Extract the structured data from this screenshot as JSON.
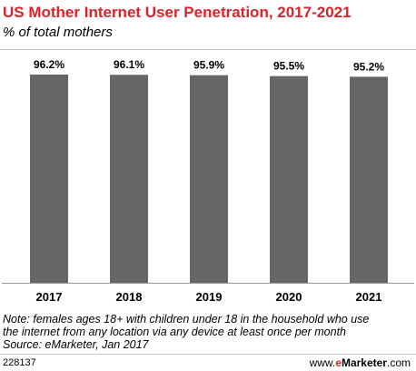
{
  "header": {
    "title": "US Mother Internet User Penetration, 2017-2021",
    "subtitle": "% of total mothers"
  },
  "chart_data": {
    "type": "bar",
    "categories": [
      "2017",
      "2018",
      "2019",
      "2020",
      "2021"
    ],
    "values": [
      96.2,
      96.1,
      95.9,
      95.5,
      95.2
    ],
    "value_labels": [
      "96.2%",
      "96.1%",
      "95.9%",
      "95.5%",
      "95.2%"
    ],
    "title": "US Mother Internet User Penetration, 2017-2021",
    "subtitle": "% of total mothers",
    "xlabel": "",
    "ylabel": "",
    "ylim": [
      0,
      96.2
    ],
    "grid": false,
    "bar_color": "#666666"
  },
  "footer": {
    "note_lines": [
      "Note: females ages 18+ with children under 18 in the household who use",
      "the internet from any location via any device at least once per month",
      "Source: eMarketer, Jan 2017"
    ],
    "chart_id": "228137",
    "brand_prefix": "www.",
    "brand_accent": "e",
    "brand_name": "Marketer",
    "brand_suffix": ".com"
  },
  "colors": {
    "accent": "#d8232a",
    "bar": "#666666"
  }
}
